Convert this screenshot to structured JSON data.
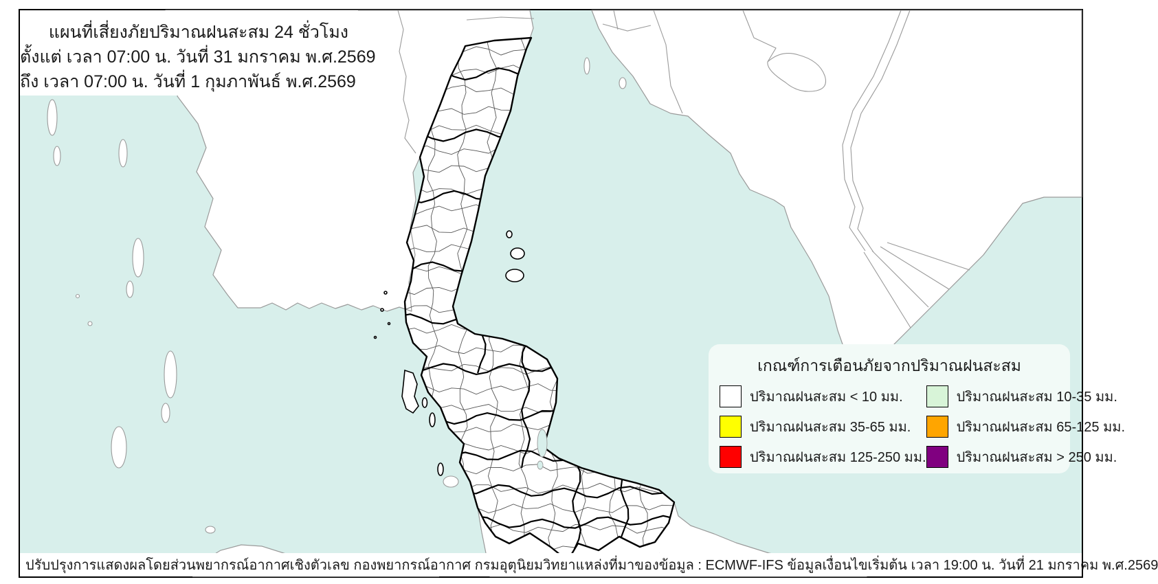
{
  "title_box": {
    "line1": "แผนที่เสี่ยงภัยปริมาณฝนสะสม 24 ชั่วโมง",
    "line2": "ตั้งแต่ เวลา 07:00 น. วันที่ 31 มกราคม พ.ศ.2569",
    "line3": "ถึง เวลา 07:00 น. วันที่ 1 กุมภาพันธ์ พ.ศ.2569"
  },
  "legend": {
    "title": "เกณฑ์การเตือนภัยจากปริมาณฝนสะสม",
    "items": [
      {
        "color": "#ffffff",
        "label": "ปริมาณฝนสะสม < 10 มม."
      },
      {
        "color": "#d8f4d8",
        "label": "ปริมาณฝนสะสม 10-35 มม."
      },
      {
        "color": "#ffff00",
        "label": "ปริมาณฝนสะสม 35-65 มม."
      },
      {
        "color": "#ffa500",
        "label": "ปริมาณฝนสะสม 65-125 มม."
      },
      {
        "color": "#ff0000",
        "label": "ปริมาณฝนสะสม 125-250 มม."
      },
      {
        "color": "#800080",
        "label": "ปริมาณฝนสะสม > 250 มม."
      }
    ]
  },
  "footer": {
    "left": "ปรับปรุงการแสดงผลโดยส่วนพยากรณ์อากาศเชิงตัวเลข กองพยากรณ์อากาศ กรมอุตุนิยมวิทยา",
    "right": "แหล่งที่มาของข้อมูล : ECMWF-IFS ข้อมูลเงื่อนไขเริ่มต้น เวลา 19:00 น. วันที่ 21 มกราคม พ.ศ.2569"
  },
  "map": {
    "sea_color": "#d8efeb",
    "land_color": "#ffffff",
    "neighbor_outline_color": "#9a9a9a",
    "district_line_color": "#555555",
    "province_outline_color": "#000000",
    "note": "all districts shown white (rainfall < 10 mm)"
  }
}
